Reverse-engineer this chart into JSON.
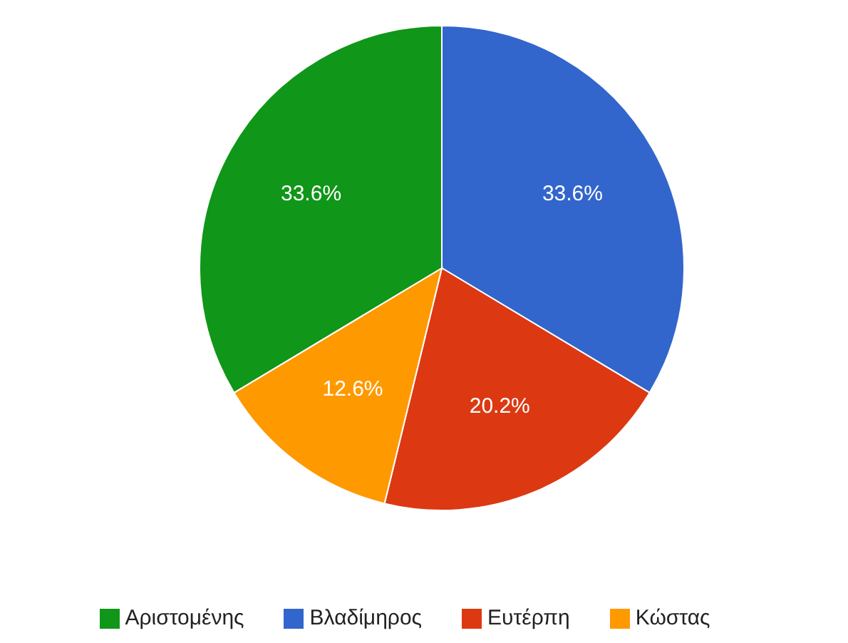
{
  "chart_data": {
    "type": "pie",
    "categories": [
      "Βλαδίμηρος",
      "Ευτέρπη",
      "Κώστας",
      "Αριστομένης"
    ],
    "values": [
      33.6,
      20.2,
      12.6,
      33.6
    ],
    "colors": [
      "#3366cc",
      "#dc3912",
      "#ff9900",
      "#109618"
    ],
    "value_labels": [
      "33.6%",
      "20.2%",
      "12.6%",
      "33.6%"
    ],
    "legend": "bottom"
  }
}
